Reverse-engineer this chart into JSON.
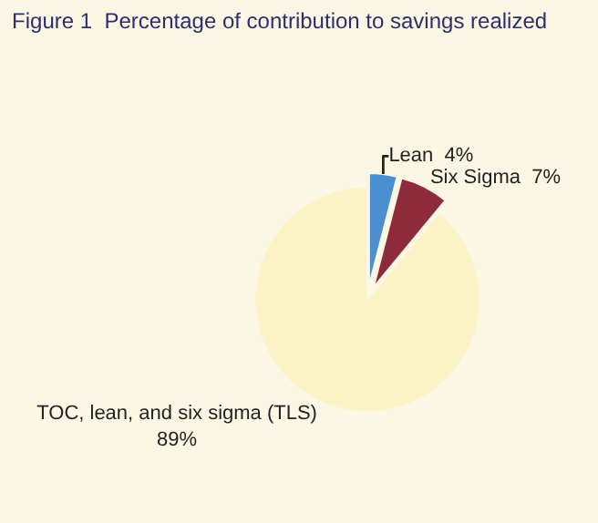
{
  "chart_data": {
    "type": "pie",
    "title": "Figure 1  Percentage of contribution to savings realized",
    "categories": [
      "Lean",
      "Six Sigma",
      "TOC, lean, and six sigma (TLS)"
    ],
    "values": [
      4,
      7,
      89
    ],
    "colors": [
      "#4a90d0",
      "#8e2b3b",
      "#fbf3c6"
    ],
    "value_labels": [
      "4%",
      "7%",
      "89%"
    ],
    "legend": false
  }
}
